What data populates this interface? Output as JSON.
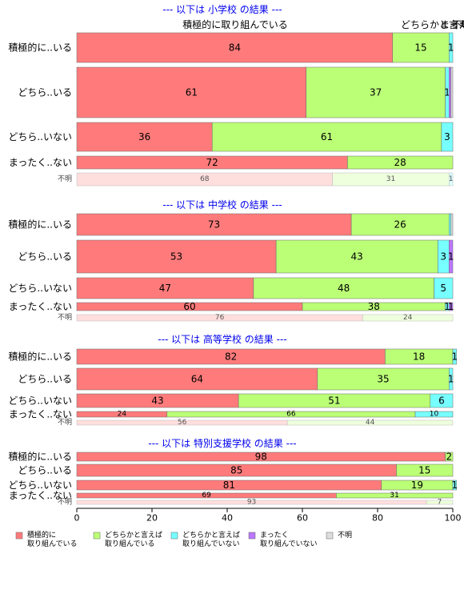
{
  "chart_data": {
    "type": "bar",
    "orientation": "horizontal",
    "stacked": true,
    "xlim": [
      0,
      100
    ],
    "x_ticks": [
      "0",
      "20",
      "40",
      "60",
      "80",
      "100"
    ],
    "top_labels": [
      "積極的に取り組んでいる",
      "どちらかと言えば",
      "まったく",
      "不明"
    ],
    "colors": {
      "積極的に取り組んでいる": "#ff7b7b",
      "どちらかと言えば取り組んでいる": "#bbff77",
      "どちらかと言えば取り組んでいない": "#77ffff",
      "まったく取り組んでいない": "#bb77ff",
      "不明": "#dddddd"
    },
    "legend": [
      {
        "label": "積極的に\n取り組んでいる",
        "color": "#ff7b7b"
      },
      {
        "label": "どちらかと言えば\n取り組んでいる",
        "color": "#bbff77"
      },
      {
        "label": "どちらかと言えば\n取り組んでいない",
        "color": "#77ffff"
      },
      {
        "label": "まったく\n取り組んでいない",
        "color": "#bb77ff"
      },
      {
        "label": "不明",
        "color": "#dddddd"
      }
    ],
    "panels": [
      {
        "title": "--- 以下は 小学校 の結果 ---",
        "rows": [
          {
            "label": "積極的に..いる",
            "values": [
              84,
              15,
              1,
              0,
              0
            ]
          },
          {
            "label": "どちら..いる",
            "values": [
              61,
              37,
              1,
              0.5,
              0.5
            ]
          },
          {
            "label": "どちら..いない",
            "values": [
              36,
              61,
              3,
              0,
              0
            ]
          },
          {
            "label": "まったく..ない",
            "values": [
              72,
              28,
              0,
              0,
              0
            ]
          },
          {
            "label": "不明",
            "values": [
              68,
              31,
              1,
              0,
              0
            ],
            "faded": true
          }
        ]
      },
      {
        "title": "--- 以下は 中学校 の結果 ---",
        "rows": [
          {
            "label": "積極的に..いる",
            "values": [
              73,
              26,
              0.5,
              0,
              0.5
            ]
          },
          {
            "label": "どちら..いる",
            "values": [
              53,
              43,
              3,
              1,
              0
            ]
          },
          {
            "label": "どちら..いない",
            "values": [
              47,
              48,
              5,
              0,
              0
            ]
          },
          {
            "label": "まったく..ない",
            "values": [
              60,
              38,
              1,
              1,
              0
            ]
          },
          {
            "label": "不明",
            "values": [
              76,
              24,
              0,
              0,
              0
            ],
            "faded": true
          }
        ]
      },
      {
        "title": "--- 以下は 高等学校 の結果 ---",
        "rows": [
          {
            "label": "積極的に..いる",
            "values": [
              82,
              18,
              1,
              0,
              0
            ]
          },
          {
            "label": "どちら..いる",
            "values": [
              64,
              35,
              1,
              0,
              0
            ]
          },
          {
            "label": "どちら..いない",
            "values": [
              43,
              51,
              6,
              0,
              0
            ]
          },
          {
            "label": "まったく..ない",
            "values": [
              24,
              66,
              10,
              0,
              0
            ]
          },
          {
            "label": "不明",
            "values": [
              56,
              44,
              0,
              0,
              0
            ],
            "faded": true
          }
        ]
      },
      {
        "title": "--- 以下は 特別支援学校 の結果 ---",
        "rows": [
          {
            "label": "積極的に..いる",
            "values": [
              98,
              2,
              0,
              0,
              0
            ]
          },
          {
            "label": "どちら..いる",
            "values": [
              85,
              15,
              0,
              0,
              0
            ]
          },
          {
            "label": "どちら..いない",
            "values": [
              81,
              19,
              1,
              0,
              0
            ]
          },
          {
            "label": "まったく..ない",
            "values": [
              69,
              31,
              0,
              0,
              0
            ]
          },
          {
            "label": "不明",
            "values": [
              93,
              7,
              0,
              0,
              0
            ],
            "faded": true
          }
        ]
      }
    ]
  }
}
